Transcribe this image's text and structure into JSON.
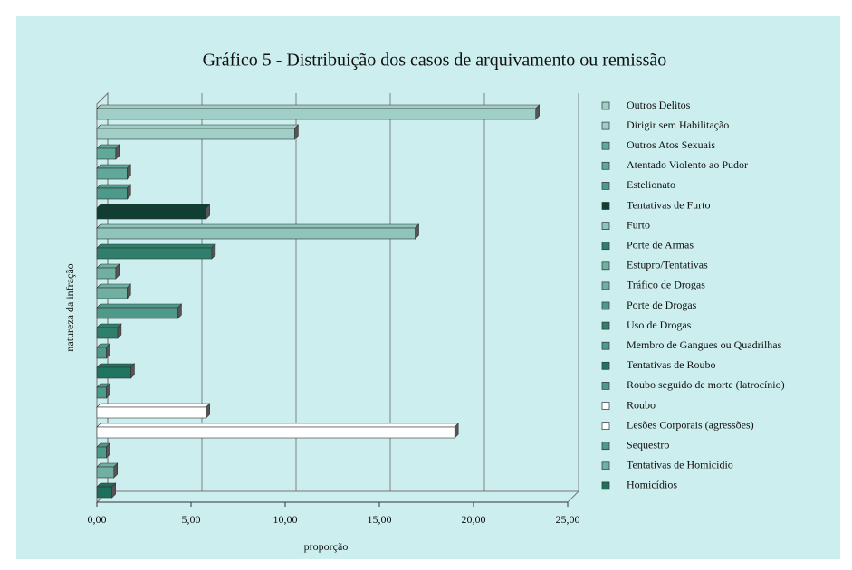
{
  "chart_data": {
    "type": "bar",
    "orientation": "horizontal",
    "title": "Gráfico 5 - Distribuição dos casos de arquivamento ou remissão",
    "xlabel": "proporção",
    "ylabel": "natureza da infração",
    "categories": [
      "Outros Delitos",
      "Dirigir sem Habilitação",
      "Outros Atos Sexuais",
      "Atentado Violento ao Pudor",
      "Estelionato",
      "Tentativas de Furto",
      "Furto",
      "Porte de Armas",
      "Estupro/Tentativas",
      "Tráfico de Drogas",
      "Porte de Drogas",
      "Uso de Drogas",
      "Membro de Gangues ou Quadrilhas",
      "Tentativas de Roubo",
      "Roubo seguido de morte (latrocínio)",
      "Roubo",
      "Lesões Corporais (agressões)",
      "Sequestro",
      "Tentativas de Homicídio",
      "Homicídios"
    ],
    "values": [
      23.3,
      10.5,
      1.0,
      1.6,
      1.6,
      5.8,
      16.9,
      6.1,
      1.0,
      1.6,
      4.3,
      1.1,
      0.5,
      1.8,
      0.5,
      5.8,
      19.0,
      0.5,
      0.9,
      0.8
    ],
    "colors": [
      "#9fcfc6",
      "#9fcfc6",
      "#5fa89a",
      "#5fa89a",
      "#4e9a8a",
      "#0f3f33",
      "#8ec4ba",
      "#2f7f6c",
      "#6fb0a2",
      "#6fb0a2",
      "#4e9a8a",
      "#2f7f6c",
      "#4e9a8a",
      "#1f7560",
      "#4e9a8a",
      "#ffffff",
      "#ffffff",
      "#4e9a8a",
      "#6fb0a2",
      "#1f6f5c"
    ],
    "xlim": [
      0,
      25
    ],
    "xticks": [
      {
        "value": 0,
        "label": "0,00"
      },
      {
        "value": 5,
        "label": "5,00"
      },
      {
        "value": 10,
        "label": "10,00"
      },
      {
        "value": 15,
        "label": "15,00"
      },
      {
        "value": 20,
        "label": "20,00"
      },
      {
        "value": 25,
        "label": "25,00"
      }
    ],
    "grid": true
  }
}
